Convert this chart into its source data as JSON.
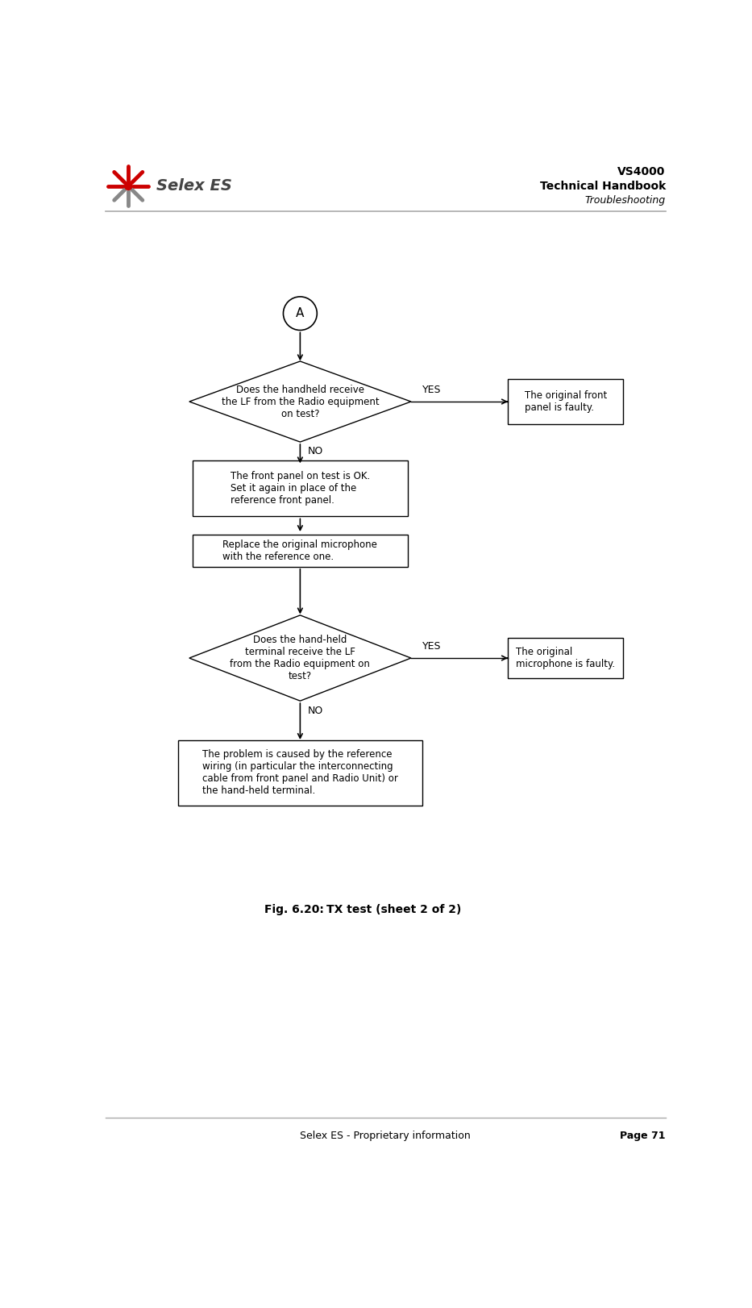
{
  "title_right_line1": "VS4000",
  "title_right_line2": "Technical Handbook",
  "title_right_line3": "Troubleshooting",
  "footer_left": "Selex ES - Proprietary information",
  "footer_right": "Page 71",
  "fig_caption_label": "Fig. 6.20:",
  "fig_caption_text": "TX test (sheet 2 of 2)",
  "connector_label": "A",
  "diamond1_text": "Does the handheld receive\nthe LF from the Radio equipment\non test?",
  "diamond1_yes_label": "YES",
  "diamond1_no_label": "NO",
  "box1_text": "The front panel on test is OK.\nSet it again in place of the\nreference front panel.",
  "box2_text": "Replace the original microphone\nwith the reference one.",
  "diamond2_text": "Does the hand-held\nterminal receive the LF\nfrom the Radio equipment on\ntest?",
  "diamond2_yes_label": "YES",
  "diamond2_no_label": "NO",
  "box3_text": "The problem is caused by the reference\nwiring (in particular the interconnecting\ncable from front panel and Radio Unit) or\nthe hand-held terminal.",
  "right_box1_text": "The original front\npanel is faulty.",
  "right_box2_text": "The original\nmicrophone is faulty.",
  "bg_color": "#ffffff",
  "box_color": "#ffffff",
  "box_edge": "#000000",
  "text_color": "#000000",
  "arrow_color": "#000000"
}
